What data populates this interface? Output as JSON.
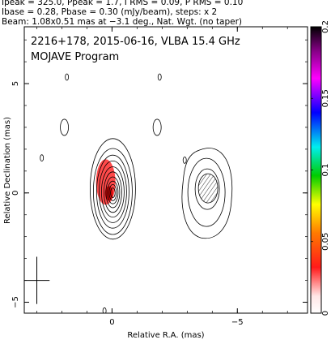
{
  "header": {
    "line1": "Ipeak = 325.0, Ppeak = 1.7, I RMS = 0.09, P RMS = 0.10",
    "line2": "Ibase = 0.28, Pbase = 0.30 (mJy/beam), steps: x 2",
    "line3": "Beam: 1.08x0.51 mas at −3.1 deg., Nat. Wgt. (no taper)"
  },
  "chart_data": {
    "type": "heatmap",
    "title": "2216+178, 2015-06-16, VLBA 15.4 GHz",
    "subtitle": "MOJAVE Program",
    "xlabel": "Relative R.A. (mas)",
    "ylabel": "Relative Declination (mas)",
    "xlim": [
      3.5,
      -7.8
    ],
    "ylim": [
      -5.5,
      7.6
    ],
    "x_ticks": [
      {
        "value": 0,
        "label": "0"
      },
      {
        "value": -5,
        "label": "−5"
      }
    ],
    "y_ticks": [
      {
        "value": 5,
        "label": "5"
      },
      {
        "value": 0,
        "label": "0"
      },
      {
        "value": -5,
        "label": "−5"
      }
    ],
    "colorbar": {
      "range": [
        0,
        0.2
      ],
      "ticks": [
        {
          "value": 0,
          "label": "0"
        },
        {
          "value": 0.05,
          "label": "0.05"
        },
        {
          "value": 0.1,
          "label": "0.1"
        },
        {
          "value": 0.15,
          "label": "0.15"
        },
        {
          "value": 0.2,
          "label": "0.2"
        }
      ],
      "colors": [
        "#ffffff",
        "#ff0000",
        "#ffff00",
        "#00dd00",
        "#00ffff",
        "#0000ff",
        "#ff00ff",
        "#000000"
      ]
    },
    "core": {
      "x": 0.0,
      "y": 0.0,
      "contour_levels": 10
    },
    "jet_component": {
      "x": -3.8,
      "y": 0.1,
      "contour_levels": 4
    },
    "polarization_patch": {
      "x": 0.25,
      "y": 0.5
    },
    "beam": {
      "major_mas": 1.08,
      "minor_mas": 0.51,
      "pa_deg": -3.1,
      "x": 3.0,
      "y": -4.0
    },
    "minor_contours": [
      {
        "x": 1.9,
        "y": 3.0
      },
      {
        "x": -1.8,
        "y": 3.0
      },
      {
        "x": 1.8,
        "y": 5.3
      },
      {
        "x": -1.9,
        "y": 5.3
      },
      {
        "x": 2.8,
        "y": 1.6
      },
      {
        "x": -2.9,
        "y": 1.5
      },
      {
        "x": 0.3,
        "y": -5.4
      }
    ]
  }
}
